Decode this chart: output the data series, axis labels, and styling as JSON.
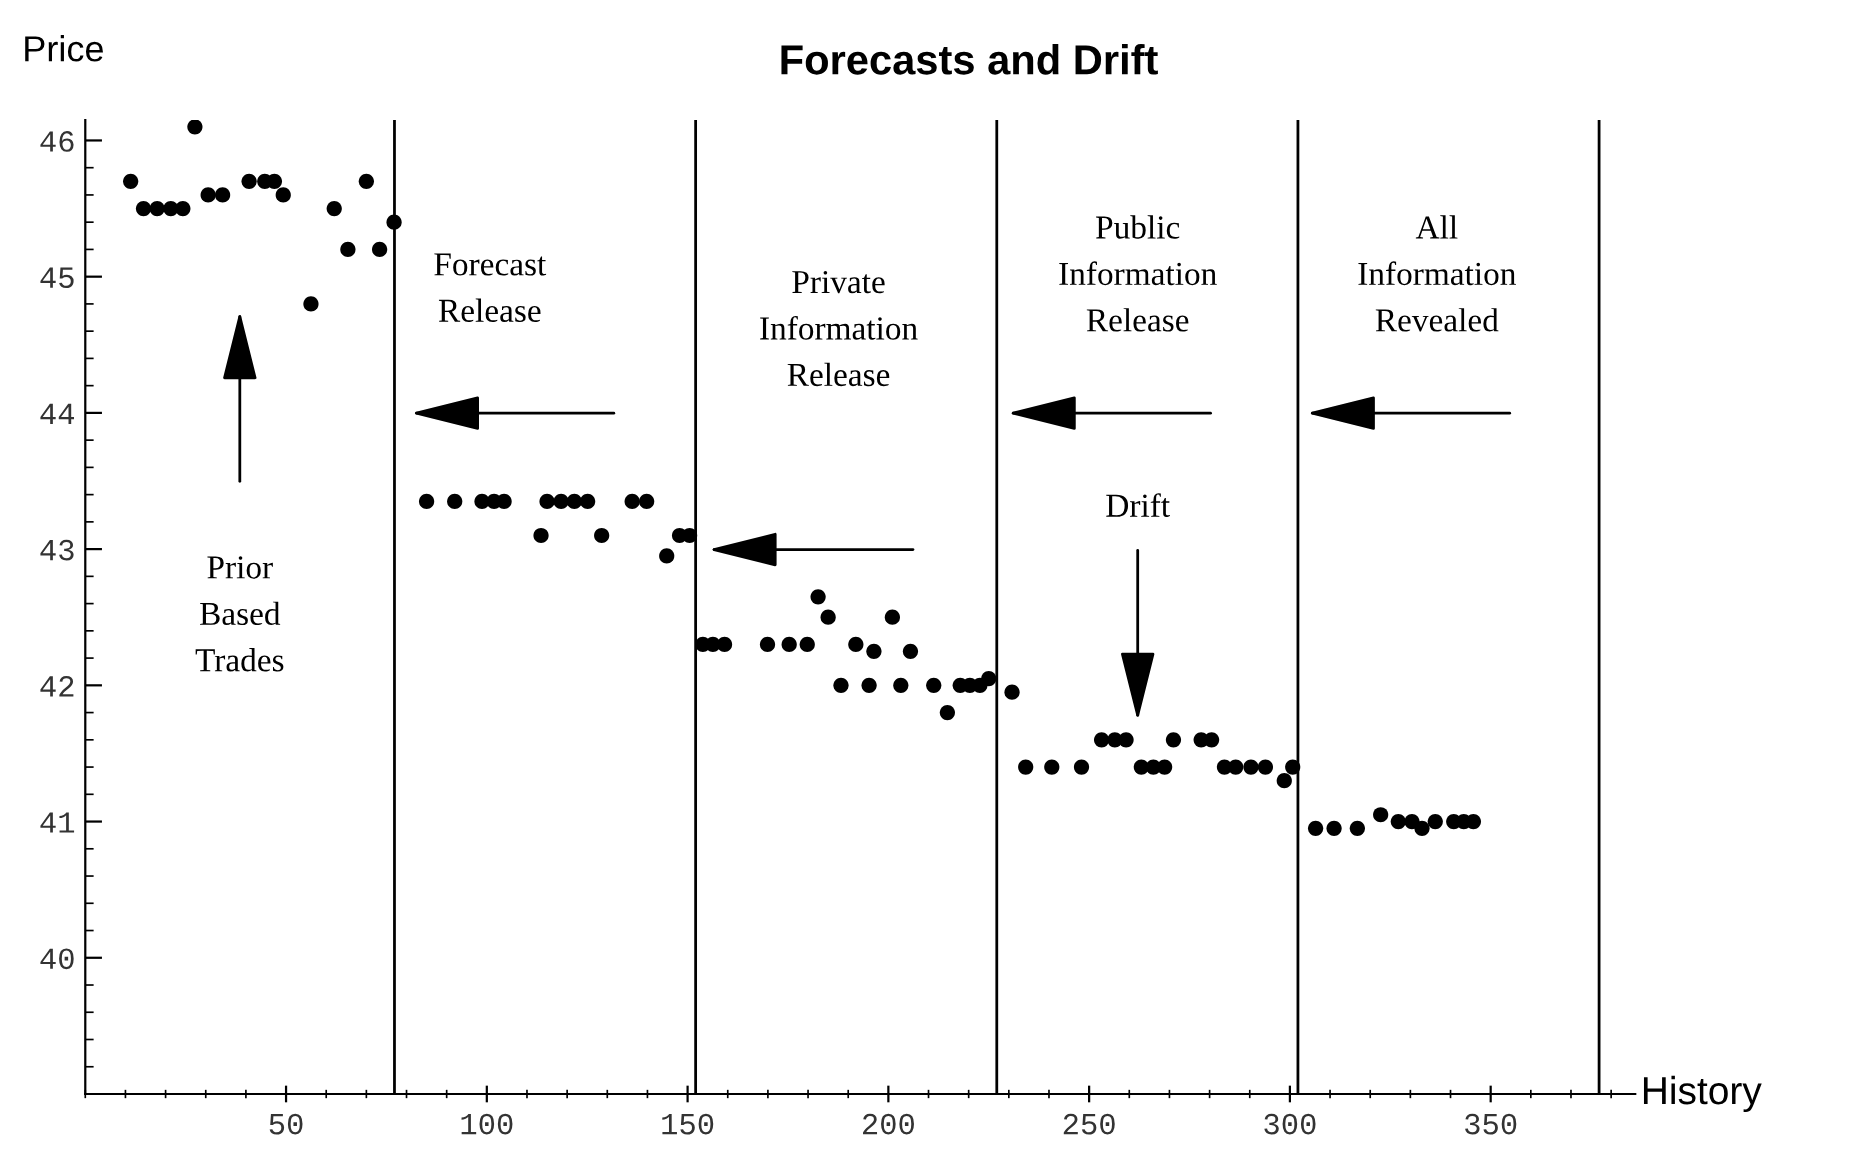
{
  "chart_data": {
    "type": "scatter",
    "title": "Forecasts and Drift",
    "xlabel": "History",
    "ylabel": "Price",
    "x": [
      11.3,
      14.5,
      17.9,
      21.3,
      24.3,
      27.3,
      30.6,
      34.2,
      40.8,
      44.7,
      47.1,
      49.3,
      56.2,
      62,
      65.4,
      70,
      73.3,
      76.9,
      85,
      92,
      98.8,
      101.8,
      104.3,
      113.5,
      115,
      118.5,
      121.8,
      125.1,
      128.6,
      136.2,
      139.8,
      144.8,
      148,
      150.5,
      153.8,
      156.3,
      159.2,
      169.9,
      175.3,
      179.8,
      182.5,
      185,
      188.2,
      191.9,
      195.2,
      196.4,
      201,
      203.1,
      205.5,
      211.3,
      214.7,
      217.9,
      220.3,
      222.8,
      225,
      230.8,
      234.2,
      240.7,
      248.1,
      253.1,
      256.4,
      259.2,
      263,
      266,
      268.8,
      271,
      277.9,
      280.5,
      283.7,
      286.5,
      290.3,
      293.9,
      298.6,
      300.7,
      306.4,
      311,
      316.8,
      322.6,
      327,
      330.4,
      332.9,
      336.2,
      340.8,
      343.3,
      345.7
    ],
    "series": [
      {
        "color": "#000000",
        "values": [
          45.7,
          45.5,
          45.5,
          45.5,
          45.5,
          46.1,
          45.6,
          45.6,
          45.7,
          45.7,
          45.7,
          45.6,
          44.8,
          45.5,
          45.2,
          45.7,
          45.2,
          45.4,
          43.35,
          43.35,
          43.35,
          43.35,
          43.35,
          43.1,
          43.35,
          43.35,
          43.35,
          43.35,
          43.1,
          43.35,
          43.35,
          42.95,
          43.1,
          43.1,
          42.3,
          42.3,
          42.3,
          42.3,
          42.3,
          42.3,
          42.65,
          42.5,
          42.0,
          42.3,
          42.0,
          42.25,
          42.5,
          42.0,
          42.25,
          42.0,
          41.8,
          42.0,
          42.0,
          42.0,
          42.05,
          41.95,
          41.4,
          41.4,
          41.4,
          41.6,
          41.6,
          41.6,
          41.4,
          41.4,
          41.4,
          41.6,
          41.6,
          41.6,
          41.4,
          41.4,
          41.4,
          41.4,
          41.3,
          41.4,
          40.95,
          40.95,
          40.95,
          41.05,
          41.0,
          41.0,
          40.95,
          41.0,
          41.0,
          41.0,
          41.0
        ]
      }
    ],
    "marker": "circle",
    "grid": false,
    "legend": false,
    "xlim": [
      0,
      386
    ],
    "ylim": [
      39,
      46.15
    ],
    "xticks": [
      50,
      100,
      150,
      200,
      250,
      300,
      350
    ],
    "yticks": [
      40,
      41,
      42,
      43,
      44,
      45,
      46
    ],
    "ref_lines": [
      {
        "axis": "x",
        "value": 77,
        "label": null,
        "color": "#000000"
      },
      {
        "axis": "x",
        "value": 152,
        "label": null,
        "color": "#000000"
      },
      {
        "axis": "x",
        "value": 227,
        "label": null,
        "color": "#000000"
      },
      {
        "axis": "x",
        "value": 302,
        "label": null,
        "color": "#000000"
      },
      {
        "axis": "x",
        "value": 377,
        "label": null,
        "color": "#000000"
      }
    ],
    "annotations": [
      "Prior\nBased\nTrades",
      "Forecast\nRelease",
      "Private\nInformation\nRelease",
      "Public\nInformation\nRelease",
      "All\nInformation\nRevealed",
      "Drift"
    ]
  }
}
